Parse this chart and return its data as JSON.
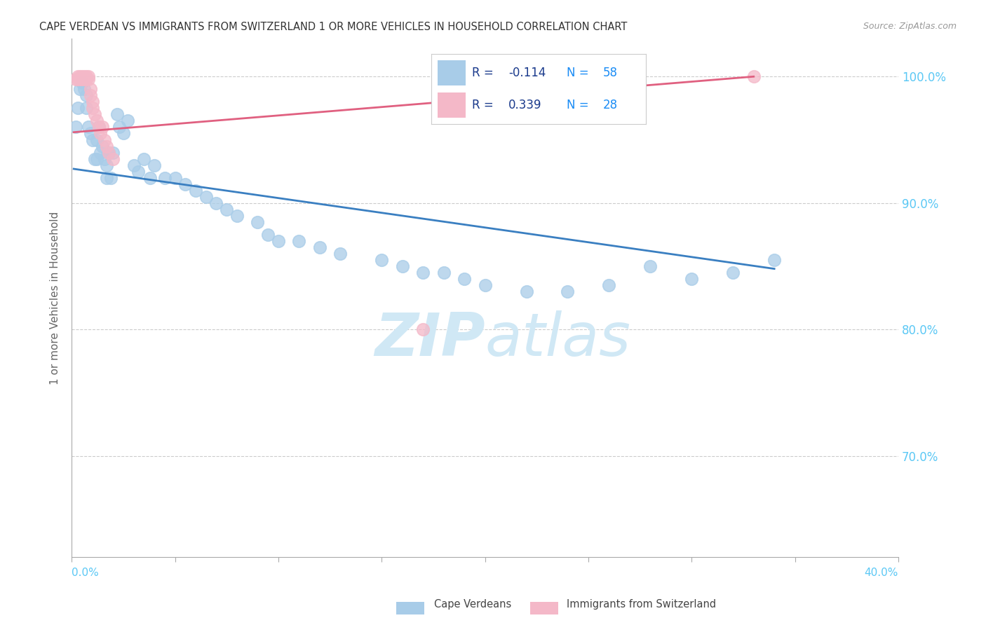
{
  "title": "CAPE VERDEAN VS IMMIGRANTS FROM SWITZERLAND 1 OR MORE VEHICLES IN HOUSEHOLD CORRELATION CHART",
  "source": "Source: ZipAtlas.com",
  "ylabel": "1 or more Vehicles in Household",
  "xlim": [
    0.0,
    0.4
  ],
  "ylim": [
    0.62,
    1.03
  ],
  "ytick_vals": [
    0.7,
    0.8,
    0.9,
    1.0
  ],
  "ytick_labels": [
    "70.0%",
    "80.0%",
    "90.0%",
    "100.0%"
  ],
  "blue_R": -0.114,
  "blue_N": 58,
  "pink_R": 0.339,
  "pink_N": 28,
  "blue_color": "#a8cce8",
  "pink_color": "#f4b8c8",
  "blue_line_color": "#3a7fc1",
  "pink_line_color": "#e06080",
  "watermark_color": "#d0e8f5",
  "blue_x": [
    0.002,
    0.003,
    0.004,
    0.005,
    0.006,
    0.007,
    0.007,
    0.008,
    0.009,
    0.01,
    0.011,
    0.012,
    0.012,
    0.013,
    0.014,
    0.015,
    0.016,
    0.017,
    0.017,
    0.018,
    0.019,
    0.02,
    0.022,
    0.023,
    0.025,
    0.027,
    0.03,
    0.032,
    0.035,
    0.038,
    0.04,
    0.045,
    0.05,
    0.055,
    0.06,
    0.065,
    0.07,
    0.075,
    0.08,
    0.09,
    0.095,
    0.1,
    0.11,
    0.12,
    0.13,
    0.15,
    0.16,
    0.17,
    0.18,
    0.19,
    0.2,
    0.22,
    0.24,
    0.26,
    0.28,
    0.3,
    0.32,
    0.34
  ],
  "blue_y": [
    0.96,
    0.975,
    0.99,
    0.995,
    0.99,
    0.985,
    0.975,
    0.96,
    0.955,
    0.95,
    0.935,
    0.95,
    0.935,
    0.96,
    0.94,
    0.945,
    0.935,
    0.93,
    0.92,
    0.94,
    0.92,
    0.94,
    0.97,
    0.96,
    0.955,
    0.965,
    0.93,
    0.925,
    0.935,
    0.92,
    0.93,
    0.92,
    0.92,
    0.915,
    0.91,
    0.905,
    0.9,
    0.895,
    0.89,
    0.885,
    0.875,
    0.87,
    0.87,
    0.865,
    0.86,
    0.855,
    0.85,
    0.845,
    0.845,
    0.84,
    0.835,
    0.83,
    0.83,
    0.835,
    0.85,
    0.84,
    0.845,
    0.855
  ],
  "pink_x": [
    0.002,
    0.003,
    0.003,
    0.004,
    0.004,
    0.005,
    0.005,
    0.006,
    0.006,
    0.007,
    0.007,
    0.008,
    0.008,
    0.009,
    0.009,
    0.01,
    0.01,
    0.011,
    0.012,
    0.013,
    0.014,
    0.015,
    0.016,
    0.017,
    0.018,
    0.02,
    0.17,
    0.33
  ],
  "pink_y": [
    0.998,
    1.0,
    0.998,
    1.0,
    0.998,
    1.0,
    0.998,
    1.0,
    0.998,
    1.0,
    0.998,
    1.0,
    0.998,
    0.99,
    0.985,
    0.98,
    0.975,
    0.97,
    0.965,
    0.96,
    0.955,
    0.96,
    0.95,
    0.945,
    0.94,
    0.935,
    0.8,
    1.0
  ],
  "blue_line_x": [
    0.001,
    0.34
  ],
  "blue_line_y": [
    0.927,
    0.848
  ],
  "pink_line_x": [
    0.001,
    0.33
  ],
  "pink_line_y": [
    0.956,
    1.0
  ]
}
